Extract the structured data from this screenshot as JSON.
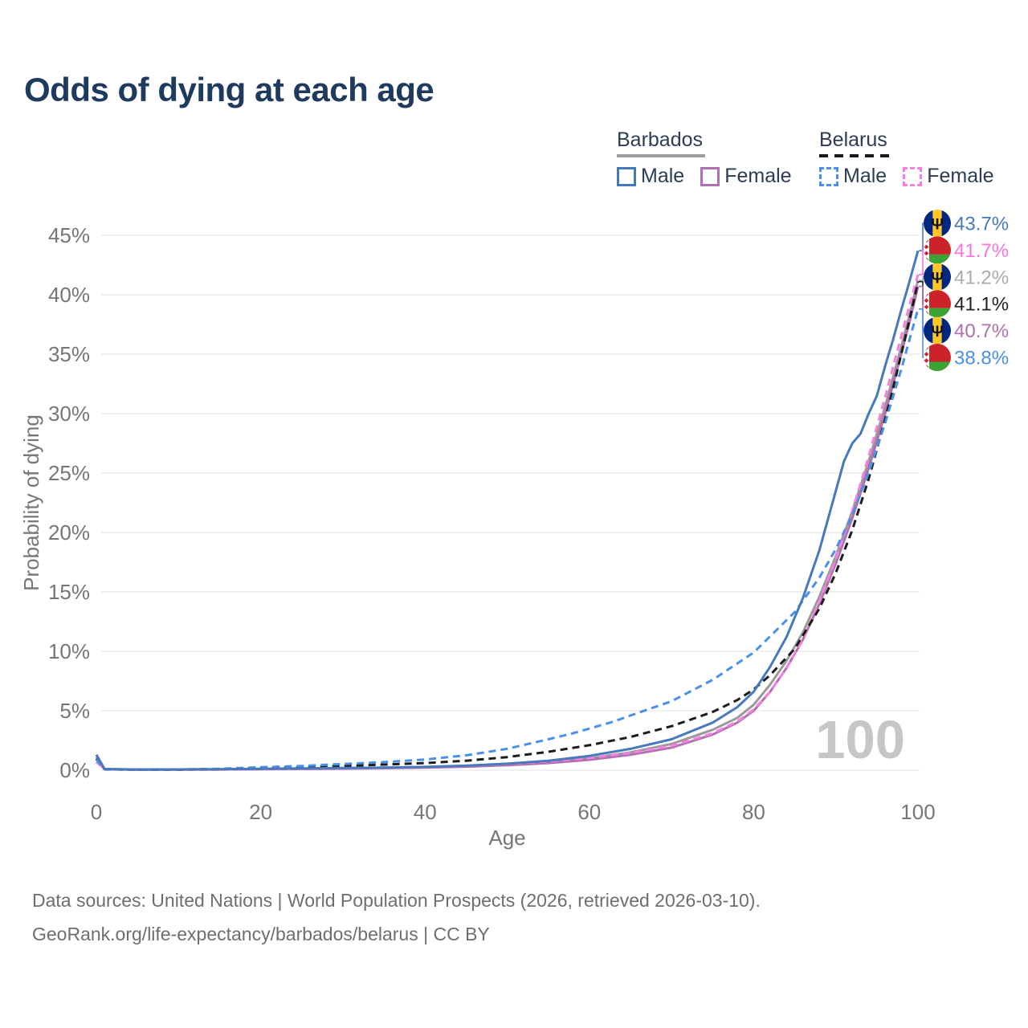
{
  "title": "Odds of dying at each age",
  "legend": {
    "groups": [
      {
        "name": "Barbados",
        "line_style": "solid",
        "underline_color": "#9e9e9e",
        "items": [
          {
            "label": "Male",
            "color": "#4779bd"
          },
          {
            "label": "Female",
            "color": "#b06fae"
          }
        ]
      },
      {
        "name": "Belarus",
        "line_style": "dashed",
        "underline_color": "#1a1a1a",
        "items": [
          {
            "label": "Male",
            "color": "#4a90e8"
          },
          {
            "label": "Female",
            "color": "#f97ee3"
          }
        ]
      }
    ]
  },
  "chart_data": {
    "type": "line",
    "title": "Odds of dying at each age",
    "xlabel": "Age",
    "ylabel": "Probability of dying",
    "xlim": [
      0,
      100
    ],
    "ylim": [
      0,
      45
    ],
    "grid": true,
    "legend_position": "top-right",
    "watermark": "100",
    "xticks": [
      {
        "value": 0,
        "label": "0"
      },
      {
        "value": 20,
        "label": "20"
      },
      {
        "value": 40,
        "label": "40"
      },
      {
        "value": 60,
        "label": "60"
      },
      {
        "value": 80,
        "label": "80"
      },
      {
        "value": 100,
        "label": "100"
      }
    ],
    "yticks": [
      {
        "value": 0,
        "label": "0%"
      },
      {
        "value": 5,
        "label": "5%"
      },
      {
        "value": 10,
        "label": "10%"
      },
      {
        "value": 15,
        "label": "15%"
      },
      {
        "value": 20,
        "label": "20%"
      },
      {
        "value": 25,
        "label": "25%"
      },
      {
        "value": 30,
        "label": "30%"
      },
      {
        "value": 35,
        "label": "35%"
      },
      {
        "value": 40,
        "label": "40%"
      },
      {
        "value": 45,
        "label": "45%"
      }
    ],
    "series": [
      {
        "id": "barbados-male",
        "country": "Barbados",
        "sex": "male",
        "color": "#4779bd",
        "line_style": "solid",
        "z": 6,
        "label_row": 0,
        "flag": "barbados-flag-icon",
        "end_label": "43.7%",
        "end_label_color": "#4779bd",
        "points": [
          [
            0,
            1.3
          ],
          [
            1,
            0.1
          ],
          [
            5,
            0.06
          ],
          [
            10,
            0.07
          ],
          [
            15,
            0.09
          ],
          [
            20,
            0.12
          ],
          [
            25,
            0.15
          ],
          [
            30,
            0.18
          ],
          [
            35,
            0.22
          ],
          [
            40,
            0.28
          ],
          [
            45,
            0.38
          ],
          [
            50,
            0.55
          ],
          [
            55,
            0.8
          ],
          [
            60,
            1.2
          ],
          [
            65,
            1.8
          ],
          [
            70,
            2.6
          ],
          [
            75,
            4.0
          ],
          [
            78,
            5.3
          ],
          [
            80,
            6.6
          ],
          [
            82,
            8.7
          ],
          [
            84,
            11.2
          ],
          [
            86,
            14.5
          ],
          [
            88,
            18.5
          ],
          [
            90,
            23.5
          ],
          [
            91,
            26.0
          ],
          [
            92,
            27.5
          ],
          [
            93,
            28.3
          ],
          [
            94,
            30.0
          ],
          [
            95,
            31.5
          ],
          [
            96,
            34.0
          ],
          [
            97,
            36.3
          ],
          [
            98,
            38.8
          ],
          [
            99,
            41.2
          ],
          [
            100,
            43.7
          ]
        ]
      },
      {
        "id": "belarus-female",
        "country": "Belarus",
        "sex": "female",
        "color": "#f97ee3",
        "line_style": "dashed",
        "z": 3,
        "label_row": 1,
        "flag": "belarus-flag-icon",
        "end_label": "41.7%",
        "end_label_color": "#f973e0",
        "points": [
          [
            0,
            0.7
          ],
          [
            1,
            0.06
          ],
          [
            5,
            0.04
          ],
          [
            10,
            0.04
          ],
          [
            15,
            0.06
          ],
          [
            20,
            0.09
          ],
          [
            25,
            0.12
          ],
          [
            30,
            0.16
          ],
          [
            35,
            0.21
          ],
          [
            40,
            0.28
          ],
          [
            45,
            0.38
          ],
          [
            50,
            0.52
          ],
          [
            55,
            0.73
          ],
          [
            60,
            1.02
          ],
          [
            65,
            1.45
          ],
          [
            70,
            2.05
          ],
          [
            75,
            3.1
          ],
          [
            78,
            4.1
          ],
          [
            80,
            5.1
          ],
          [
            82,
            6.6
          ],
          [
            84,
            8.6
          ],
          [
            86,
            11.0
          ],
          [
            88,
            14.2
          ],
          [
            90,
            17.8
          ],
          [
            92,
            21.8
          ],
          [
            94,
            26.4
          ],
          [
            96,
            31.4
          ],
          [
            98,
            36.6
          ],
          [
            99,
            39.2
          ],
          [
            100,
            41.7
          ]
        ]
      },
      {
        "id": "barbados-total",
        "country": "Barbados",
        "sex": "total",
        "color": "#9a9a9a",
        "line_style": "solid",
        "z": 1,
        "label_row": 2,
        "flag": "barbados-flag-icon",
        "end_label": "41.2%",
        "end_label_color": "#ababab",
        "points": [
          [
            0,
            1.1
          ],
          [
            1,
            0.09
          ],
          [
            5,
            0.05
          ],
          [
            10,
            0.06
          ],
          [
            15,
            0.07
          ],
          [
            20,
            0.1
          ],
          [
            25,
            0.12
          ],
          [
            30,
            0.15
          ],
          [
            35,
            0.19
          ],
          [
            40,
            0.24
          ],
          [
            45,
            0.33
          ],
          [
            50,
            0.47
          ],
          [
            55,
            0.68
          ],
          [
            60,
            1.0
          ],
          [
            65,
            1.5
          ],
          [
            70,
            2.2
          ],
          [
            75,
            3.4
          ],
          [
            78,
            4.4
          ],
          [
            80,
            5.5
          ],
          [
            82,
            7.2
          ],
          [
            84,
            9.2
          ],
          [
            86,
            11.6
          ],
          [
            88,
            14.6
          ],
          [
            90,
            18.0
          ],
          [
            92,
            21.8
          ],
          [
            94,
            26.0
          ],
          [
            96,
            30.6
          ],
          [
            98,
            35.7
          ],
          [
            99,
            38.4
          ],
          [
            100,
            41.2
          ]
        ]
      },
      {
        "id": "belarus-total",
        "country": "Belarus",
        "sex": "total",
        "color": "#1c1c1c",
        "line_style": "dashed",
        "z": 4,
        "label_row": 3,
        "flag": "belarus-flag-icon",
        "end_label": "41.1%",
        "end_label_color": "#222222",
        "points": [
          [
            0,
            0.95
          ],
          [
            1,
            0.08
          ],
          [
            5,
            0.05
          ],
          [
            10,
            0.05
          ],
          [
            15,
            0.09
          ],
          [
            20,
            0.17
          ],
          [
            25,
            0.25
          ],
          [
            30,
            0.36
          ],
          [
            35,
            0.47
          ],
          [
            40,
            0.6
          ],
          [
            45,
            0.8
          ],
          [
            50,
            1.1
          ],
          [
            55,
            1.55
          ],
          [
            60,
            2.1
          ],
          [
            65,
            2.8
          ],
          [
            70,
            3.7
          ],
          [
            75,
            4.9
          ],
          [
            78,
            5.9
          ],
          [
            80,
            6.8
          ],
          [
            82,
            8.0
          ],
          [
            85,
            10.2
          ],
          [
            88,
            13.6
          ],
          [
            90,
            16.6
          ],
          [
            92,
            20.2
          ],
          [
            94,
            24.5
          ],
          [
            96,
            29.5
          ],
          [
            97,
            32.2
          ],
          [
            98,
            35.1
          ],
          [
            99,
            38.0
          ],
          [
            100,
            41.1
          ]
        ]
      },
      {
        "id": "barbados-female",
        "country": "Barbados",
        "sex": "female",
        "color": "#b06fae",
        "line_style": "solid",
        "z": 2,
        "label_row": 4,
        "flag": "barbados-flag-icon",
        "end_label": "40.7%",
        "end_label_color": "#b06fae",
        "points": [
          [
            0,
            0.9
          ],
          [
            1,
            0.08
          ],
          [
            5,
            0.04
          ],
          [
            10,
            0.05
          ],
          [
            15,
            0.06
          ],
          [
            20,
            0.08
          ],
          [
            25,
            0.1
          ],
          [
            30,
            0.13
          ],
          [
            35,
            0.17
          ],
          [
            40,
            0.22
          ],
          [
            45,
            0.3
          ],
          [
            50,
            0.42
          ],
          [
            55,
            0.6
          ],
          [
            60,
            0.88
          ],
          [
            65,
            1.3
          ],
          [
            70,
            1.9
          ],
          [
            75,
            3.0
          ],
          [
            78,
            4.0
          ],
          [
            80,
            5.0
          ],
          [
            82,
            6.6
          ],
          [
            84,
            8.6
          ],
          [
            86,
            11.0
          ],
          [
            88,
            14.0
          ],
          [
            90,
            17.4
          ],
          [
            92,
            21.2
          ],
          [
            94,
            25.4
          ],
          [
            96,
            30.0
          ],
          [
            98,
            35.1
          ],
          [
            99,
            37.8
          ],
          [
            100,
            40.7
          ]
        ]
      },
      {
        "id": "belarus-male",
        "country": "Belarus",
        "sex": "male",
        "color": "#4a90e8",
        "line_style": "dashed",
        "z": 5,
        "label_row": 5,
        "flag": "belarus-flag-icon",
        "end_label": "38.8%",
        "end_label_color": "#4a90e8",
        "points": [
          [
            0,
            0.9
          ],
          [
            1,
            0.08
          ],
          [
            5,
            0.05
          ],
          [
            10,
            0.06
          ],
          [
            15,
            0.12
          ],
          [
            20,
            0.25
          ],
          [
            25,
            0.36
          ],
          [
            30,
            0.52
          ],
          [
            35,
            0.68
          ],
          [
            40,
            0.9
          ],
          [
            45,
            1.25
          ],
          [
            50,
            1.8
          ],
          [
            55,
            2.6
          ],
          [
            58,
            3.1
          ],
          [
            60,
            3.5
          ],
          [
            63,
            4.1
          ],
          [
            65,
            4.6
          ],
          [
            70,
            5.8
          ],
          [
            75,
            7.6
          ],
          [
            80,
            9.9
          ],
          [
            85,
            13.3
          ],
          [
            88,
            16.2
          ],
          [
            90,
            18.6
          ],
          [
            92,
            21.5
          ],
          [
            94,
            25.0
          ],
          [
            96,
            29.2
          ],
          [
            98,
            33.8
          ],
          [
            100,
            38.8
          ]
        ]
      }
    ]
  },
  "footer": {
    "line1": "Data sources: United Nations | World Population Prospects (2026, retrieved 2026-03-10).",
    "line2": "GeoRank.org/life-expectancy/barbados/belarus | CC BY"
  }
}
